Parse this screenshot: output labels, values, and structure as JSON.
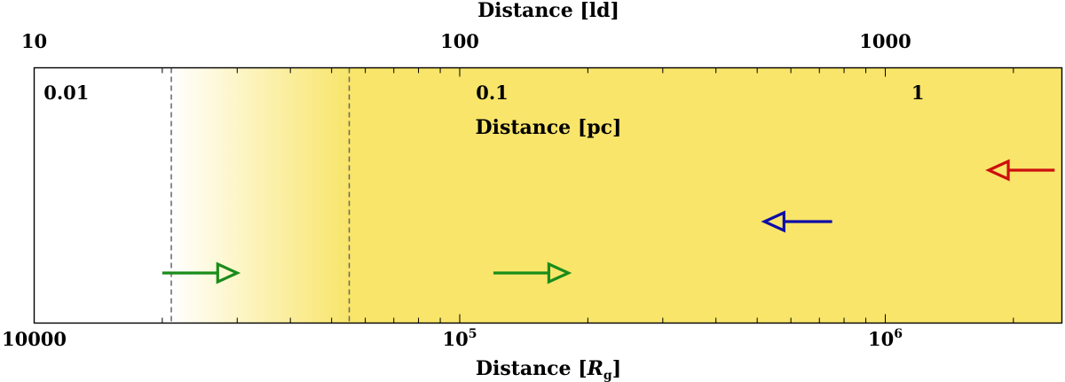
{
  "chart_data": {
    "type": "scatter",
    "axes": {
      "bottom": {
        "label_prefix": "Distance [",
        "label_symbol": "R",
        "label_subscript": "g",
        "label_suffix": "]",
        "scale": "log",
        "range": [
          10000,
          2600000
        ],
        "tick_labels": [
          {
            "value": 10000,
            "text": "10000"
          },
          {
            "value": 100000,
            "base": "10",
            "exp": "5"
          },
          {
            "value": 1000000,
            "base": "10",
            "exp": "6"
          }
        ]
      },
      "top": {
        "label": "Distance [ld]",
        "scale": "log",
        "range": [
          10,
          2600
        ],
        "tick_labels": [
          {
            "value": 10,
            "text": "10"
          },
          {
            "value": 100,
            "text": "100"
          },
          {
            "value": 1000,
            "text": "1000"
          }
        ]
      },
      "inner": {
        "label": "Distance [pc]",
        "scale": "log",
        "range": [
          0.0084,
          2.18
        ],
        "tick_labels": [
          {
            "value": 0.01,
            "text": "0.01"
          },
          {
            "value": 0.1,
            "text": "0.1"
          },
          {
            "value": 1,
            "text": "1"
          }
        ]
      }
    },
    "regions": [
      {
        "kind": "gradient",
        "from_rg": 21000,
        "to_rg": 55000,
        "color": "#f8e56a"
      },
      {
        "kind": "solid",
        "from_rg": 55000,
        "to_rg": 2600000,
        "color": "#f8e56a"
      }
    ],
    "vlines_rg": [
      21000,
      55000
    ],
    "series": [
      {
        "color": "#1a8c1a",
        "direction": "right",
        "x_from_rg": 20000,
        "x_to_rg": 30000,
        "y": 1
      },
      {
        "color": "#1a8c1a",
        "direction": "right",
        "x_from_rg": 120000,
        "x_to_rg": 180000,
        "y": 1
      },
      {
        "color": "#0d0da8",
        "direction": "left",
        "x_from_rg": 750000,
        "x_to_rg": 520000,
        "y": 2
      },
      {
        "color": "#cc0f0f",
        "direction": "left",
        "x_from_rg": 2500000,
        "x_to_rg": 1750000,
        "y": 3
      }
    ]
  }
}
